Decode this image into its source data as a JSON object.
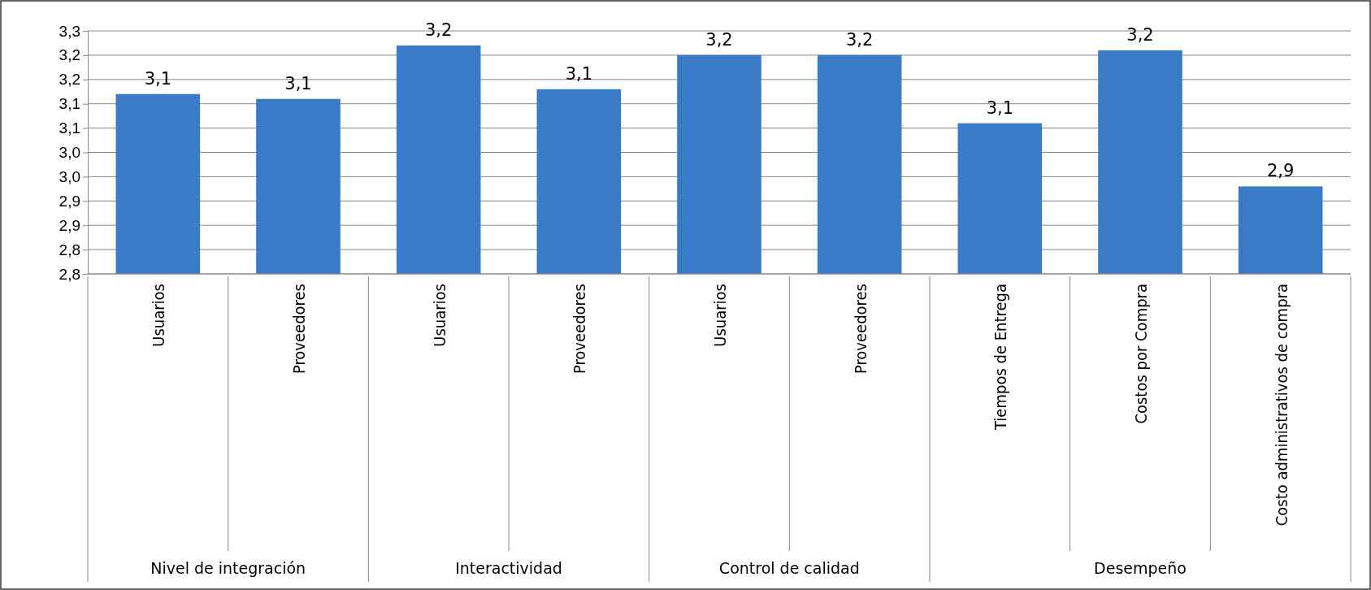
{
  "chart_data": {
    "type": "bar",
    "categories": [
      "Usuarios",
      "Proveedores",
      "Usuarios",
      "Proveedores",
      "Usuarios",
      "Proveedores",
      "Tiempos de Entrega",
      "Costos por Compra",
      "Costo administrativos de compra"
    ],
    "values": [
      3.12,
      3.11,
      3.22,
      3.13,
      3.2,
      3.2,
      3.06,
      3.21,
      2.93
    ],
    "value_labels": [
      "3,1",
      "3,1",
      "3,2",
      "3,1",
      "3,2",
      "3,2",
      "3,1",
      "3,2",
      "2,9"
    ],
    "color": "#3a7bc8",
    "ylim": [
      2.75,
      3.25
    ],
    "yticks": [
      {
        "value": 2.75,
        "label": "2,8"
      },
      {
        "value": 2.8,
        "label": "2,8"
      },
      {
        "value": 2.85,
        "label": "2,9"
      },
      {
        "value": 2.9,
        "label": "2,9"
      },
      {
        "value": 2.95,
        "label": "3,0"
      },
      {
        "value": 3.0,
        "label": "3,0"
      },
      {
        "value": 3.05,
        "label": "3,1"
      },
      {
        "value": 3.1,
        "label": "3,1"
      },
      {
        "value": 3.15,
        "label": "3,2"
      },
      {
        "value": 3.2,
        "label": "3,2"
      },
      {
        "value": 3.25,
        "label": "3,3"
      }
    ],
    "grid": "y",
    "annotations": [
      "Nivel de integración",
      "Interactividad",
      "Control de calidad",
      "Desempeño"
    ]
  }
}
